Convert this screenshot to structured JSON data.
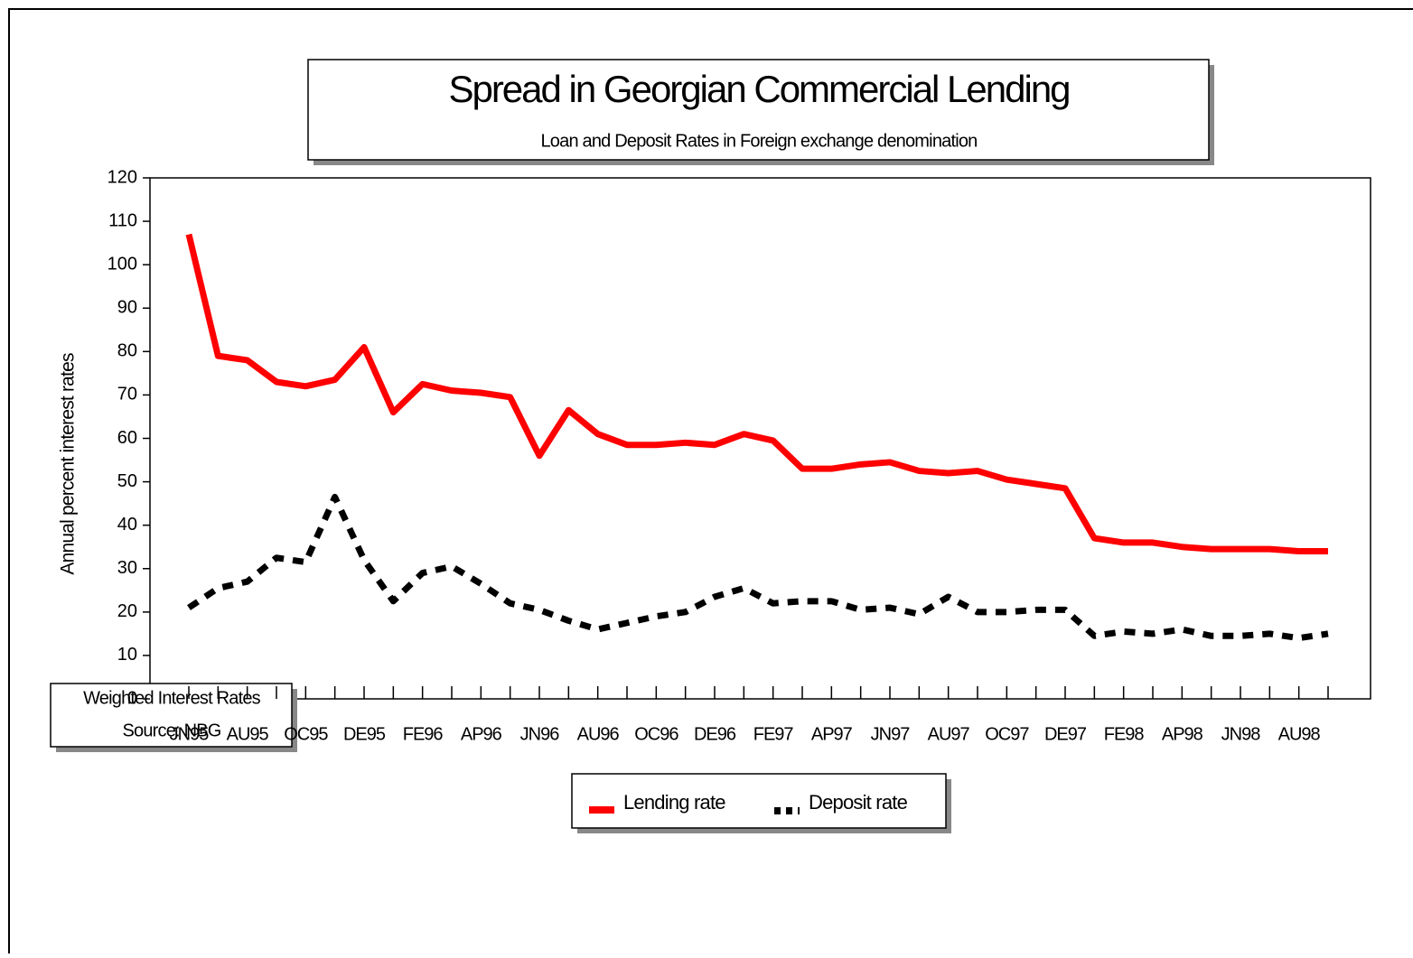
{
  "chart_data": {
    "type": "line",
    "title": "Spread in Georgian Commercial Lending",
    "subtitle": "Loan and Deposit Rates in Foreign exchange denomination",
    "ylabel": "Annual percent interest rates",
    "categories": [
      "JN95",
      null,
      "AU95",
      null,
      "OC95",
      null,
      "DE95",
      null,
      "FE96",
      null,
      "AP96",
      null,
      "JN96",
      null,
      "AU96",
      null,
      "OC96",
      null,
      "DE96",
      null,
      "FE97",
      null,
      "AP97",
      null,
      "JN97",
      null,
      "AU97",
      null,
      "OC97",
      null,
      "DE97",
      null,
      "FE98",
      null,
      "AP98",
      null,
      "JN98",
      null,
      "AU98",
      null
    ],
    "series": [
      {
        "name": "Lending rate",
        "color": "#ff0000",
        "dashed": false,
        "values": [
          107,
          79,
          78,
          73,
          72,
          73.5,
          81,
          66,
          72.5,
          71,
          70.5,
          69.5,
          56,
          66.5,
          61,
          58.5,
          58.5,
          59,
          58.5,
          61,
          59.5,
          53,
          53,
          54,
          54.5,
          52.5,
          52,
          52.5,
          50.5,
          49.5,
          48.5,
          37,
          36,
          36,
          35,
          34.5,
          34.5,
          34.5,
          34,
          34
        ]
      },
      {
        "name": "Deposit rate",
        "color": "#000000",
        "dashed": true,
        "values": [
          21,
          25.5,
          27,
          32.5,
          31.5,
          46.5,
          32,
          22.5,
          29,
          30.5,
          26.5,
          22,
          20.5,
          18,
          16,
          17.5,
          19,
          20,
          23.5,
          25.5,
          22,
          22.5,
          22.5,
          20.5,
          21,
          19.5,
          23.5,
          20,
          20,
          20.5,
          20.5,
          14.5,
          15.5,
          15,
          16,
          14.5,
          14.5,
          15,
          14,
          15
        ]
      }
    ],
    "ylim": [
      0,
      120
    ],
    "yticks": [
      0,
      10,
      20,
      30,
      40,
      50,
      60,
      70,
      80,
      90,
      100,
      110,
      120
    ],
    "grid": false,
    "legend": "bottom"
  },
  "notes": [
    "Weighted Interest Rates",
    "Source:  NBG"
  ]
}
